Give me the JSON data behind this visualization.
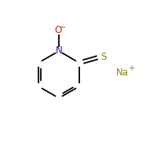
{
  "background_color": "#ffffff",
  "ring_color": "#000000",
  "N_color": "#1a1aaa",
  "O_color": "#cc2200",
  "S_color": "#888800",
  "Na_color": "#888800",
  "N_label": "N",
  "O_label": "O",
  "O_charge": "−",
  "S_label": "S",
  "Na_label": "Na",
  "Na_charge": "+",
  "fig_width": 2.0,
  "fig_height": 2.0,
  "dpi": 100
}
